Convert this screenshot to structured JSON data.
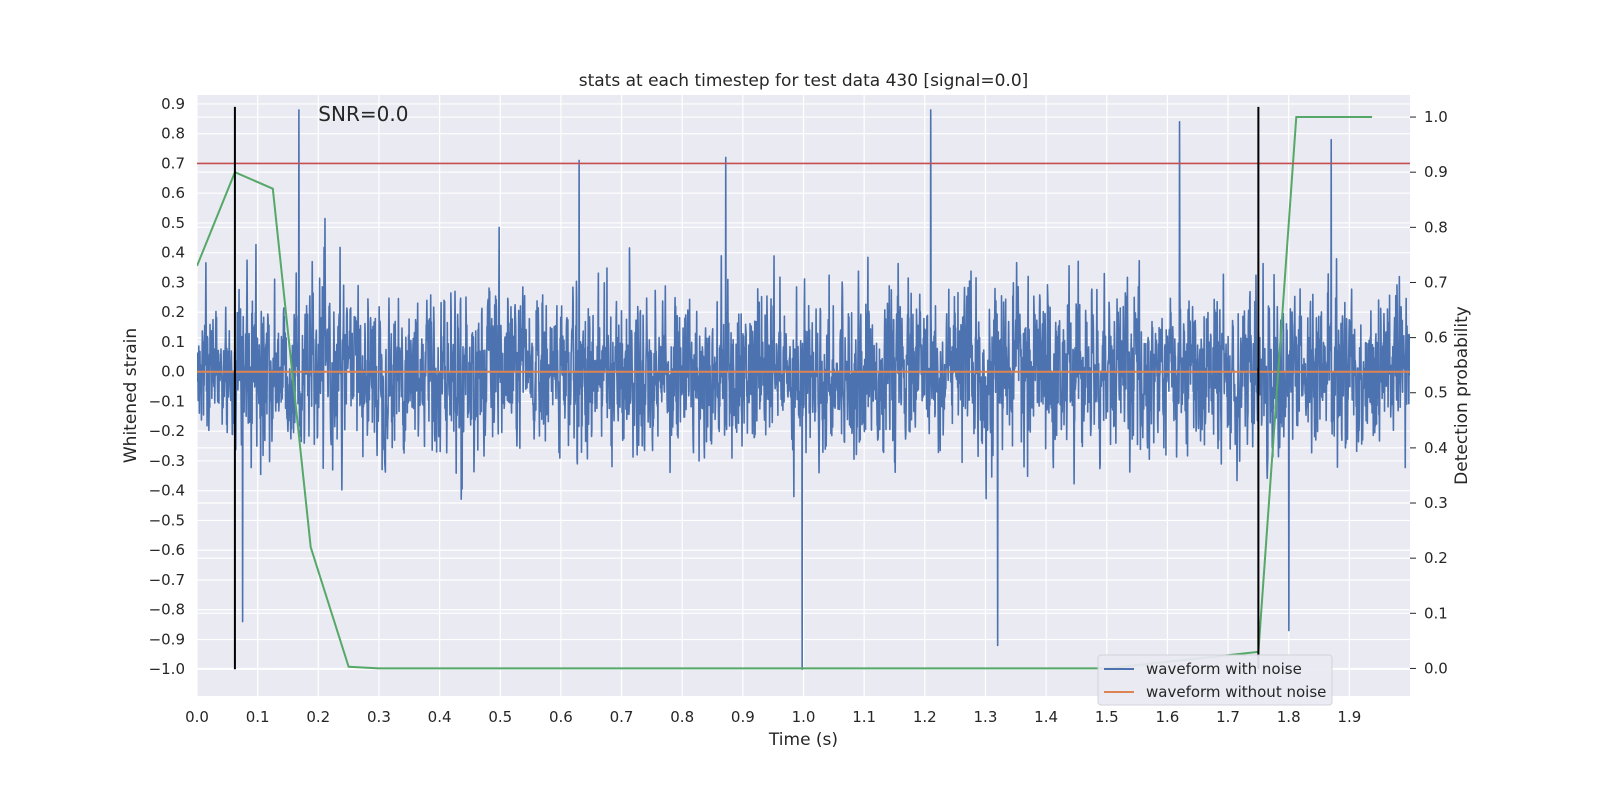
{
  "chart_data": {
    "type": "line",
    "title": "stats at each timestep for test data 430 [signal=0.0]",
    "annotation": "SNR=0.0",
    "xlabel": "Time (s)",
    "ylabel_left": "Whitened strain",
    "ylabel_right": "Detection probability",
    "xlim": [
      0.0,
      2.0
    ],
    "ylim_left": [
      -1.09,
      0.93
    ],
    "ylim_right": [
      -0.05,
      1.04
    ],
    "x_ticks": [
      "0.0",
      "0.1",
      "0.2",
      "0.3",
      "0.4",
      "0.5",
      "0.6",
      "0.7",
      "0.8",
      "0.9",
      "1.0",
      "1.1",
      "1.2",
      "1.3",
      "1.4",
      "1.5",
      "1.6",
      "1.7",
      "1.8",
      "1.9"
    ],
    "y_left_ticks": [
      "0.9",
      "0.8",
      "0.7",
      "0.6",
      "0.5",
      "0.4",
      "0.3",
      "0.2",
      "0.1",
      "0.0",
      "−0.1",
      "−0.2",
      "−0.3",
      "−0.4",
      "−0.5",
      "−0.6",
      "−0.7",
      "−0.8",
      "−0.9",
      "−1.0"
    ],
    "y_right_ticks": [
      "1.0",
      "0.9",
      "0.8",
      "0.7",
      "0.6",
      "0.5",
      "0.4",
      "0.3",
      "0.2",
      "0.1",
      "0.0"
    ],
    "grid": true,
    "legend_position": "bottom-right",
    "series": [
      {
        "name": "waveform with noise",
        "axis": "left",
        "color": "#4c72b0",
        "kind": "noise",
        "n_samples": 4096,
        "approx_std": 0.22,
        "approx_range": [
          -1.0,
          0.88
        ],
        "notable_peaks": [
          {
            "x": 0.168,
            "y": 0.88
          },
          {
            "x": 0.872,
            "y": 0.72
          },
          {
            "x": 0.63,
            "y": 0.71
          },
          {
            "x": 1.21,
            "y": 0.88
          },
          {
            "x": 1.62,
            "y": 0.84
          },
          {
            "x": 1.87,
            "y": 0.78
          },
          {
            "x": 0.998,
            "y": -1.0
          },
          {
            "x": 0.075,
            "y": -0.84
          },
          {
            "x": 1.32,
            "y": -0.92
          },
          {
            "x": 1.8,
            "y": -0.87
          }
        ]
      },
      {
        "name": "waveform without noise",
        "axis": "left",
        "color": "#dd8452",
        "kind": "line",
        "x": [
          0.0,
          2.0
        ],
        "y": [
          0.0,
          0.0
        ]
      },
      {
        "axis": "right",
        "color": "#55a868",
        "kind": "line",
        "x": [
          0.0,
          0.0625,
          0.125,
          0.1875,
          0.25,
          0.3,
          0.5,
          1.0,
          1.5,
          1.75,
          1.8125,
          1.9375
        ],
        "y": [
          0.73,
          0.9,
          0.87,
          0.22,
          0.003,
          0.0,
          0.0,
          0.0,
          0.0,
          0.03,
          1.0,
          1.0
        ]
      }
    ],
    "hlines": [
      {
        "axis": "left",
        "y": 0.7,
        "color": "#c44e52"
      }
    ],
    "vlines": [
      {
        "x": 0.0625,
        "y_range": [
          -1.0,
          0.89
        ],
        "color": "#000000"
      },
      {
        "x": 1.75,
        "y_range": [
          -1.0,
          0.89
        ],
        "color": "#000000"
      }
    ],
    "colors": {
      "plot_background": "#eaeaf2",
      "grid": "#ffffff"
    }
  }
}
